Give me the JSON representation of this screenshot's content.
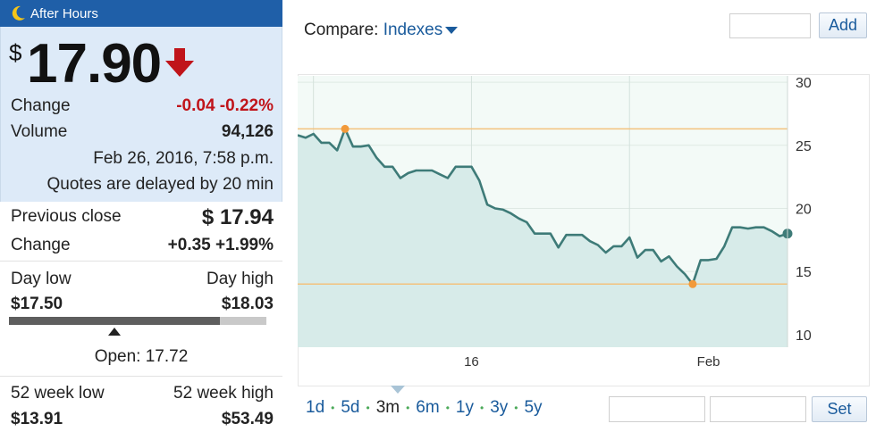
{
  "after_hours": {
    "title": "After Hours",
    "price_symbol": "$",
    "price": "17.90",
    "change_label": "Change",
    "change_value": "-0.04 -0.22%",
    "volume_label": "Volume",
    "volume_value": "94,126",
    "timestamp": "Feb 26, 2016, 7:58 p.m.",
    "delay_note": "Quotes are delayed by 20 min"
  },
  "regular": {
    "prev_close_label": "Previous close",
    "prev_close_value": "$ 17.94",
    "change_label": "Change",
    "change_value": "+0.35 +1.99%"
  },
  "day_range": {
    "low_label": "Day low",
    "high_label": "Day high",
    "low_value": "$17.50",
    "high_value": "$18.03",
    "fill_fraction": 0.82,
    "open_fraction": 0.41,
    "open_text": "Open: 17.72"
  },
  "week52": {
    "low_label": "52 week low",
    "high_label": "52 week high",
    "low_value": "$13.91",
    "high_value": "$53.49"
  },
  "compare": {
    "label": "Compare:",
    "link": "Indexes"
  },
  "buttons": {
    "add": "Add",
    "set": "Set"
  },
  "ranges": [
    "1d",
    "5d",
    "3m",
    "6m",
    "1y",
    "3y",
    "5y"
  ],
  "active_range": "3m",
  "colors": {
    "header": "#1f5fa8",
    "negative": "#c0141a",
    "line": "#3e7b78",
    "area": "#d7ebe9",
    "reference": "#f3c27e",
    "marker": "#f29a3a",
    "link": "#1a5b9c"
  },
  "chart_data": {
    "type": "area",
    "y_ticks": [
      "30",
      "25",
      "20",
      "15",
      "10"
    ],
    "ylim": [
      9,
      30.5
    ],
    "x_tick_labels": [
      {
        "label": "16",
        "index": 22
      },
      {
        "label": "Feb",
        "index": 52
      }
    ],
    "x_grid_index": [
      2,
      22,
      42
    ],
    "high_reference": 26.3,
    "low_reference": 14.0,
    "high_point_index": 6,
    "low_point_index": 50,
    "values": [
      25.8,
      25.6,
      25.9,
      25.2,
      25.2,
      24.6,
      26.3,
      24.9,
      24.9,
      25.0,
      24.0,
      23.3,
      23.3,
      22.4,
      22.8,
      23.0,
      23.0,
      23.0,
      22.7,
      22.4,
      23.3,
      23.3,
      23.3,
      22.2,
      20.3,
      20.0,
      19.9,
      19.6,
      19.2,
      18.9,
      18.0,
      18.0,
      18.0,
      16.9,
      17.9,
      17.9,
      17.9,
      17.4,
      17.1,
      16.5,
      17.0,
      17.0,
      17.7,
      16.1,
      16.7,
      16.7,
      15.8,
      16.2,
      15.4,
      14.8,
      14.0,
      15.9,
      15.9,
      16.0,
      17.0,
      18.5,
      18.5,
      18.4,
      18.5,
      18.5,
      18.2,
      17.8,
      18.0
    ]
  }
}
